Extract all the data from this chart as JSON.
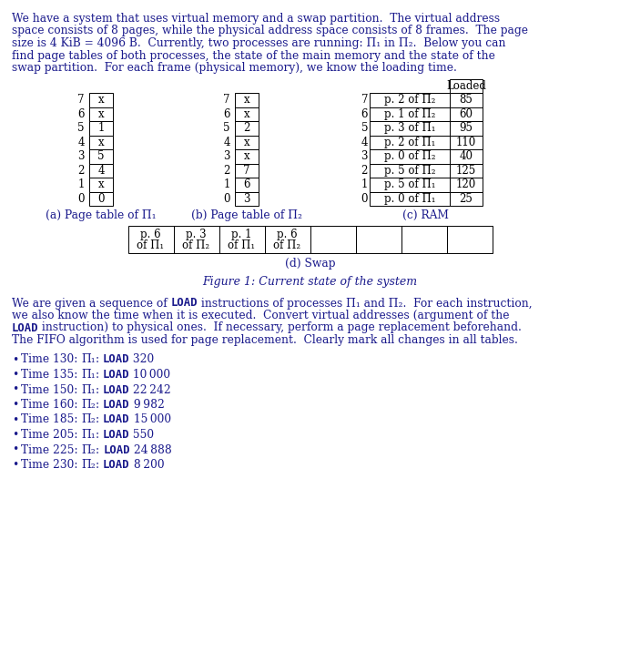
{
  "intro_lines": [
    "We have a system that uses virtual memory and a swap partition.  The virtual address",
    "space consists of 8 pages, while the physical address space consists of 8 frames.  The page",
    "size is 4 KiB = 4096 B.  Currently, two processes are running: Π₁ in Π₂.  Below you can",
    "find page tables of both processes, the state of the main memory and the state of the",
    "swap partition.  For each frame (physical memory), we know the loading time."
  ],
  "page_table_pi1": {
    "rows": [
      [
        7,
        "x"
      ],
      [
        6,
        "x"
      ],
      [
        5,
        "1"
      ],
      [
        4,
        "x"
      ],
      [
        3,
        "5"
      ],
      [
        2,
        "4"
      ],
      [
        1,
        "x"
      ],
      [
        0,
        "0"
      ]
    ],
    "label": "(a) Page table of Π₁"
  },
  "page_table_pi2": {
    "rows": [
      [
        7,
        "x"
      ],
      [
        6,
        "x"
      ],
      [
        5,
        "2"
      ],
      [
        4,
        "x"
      ],
      [
        3,
        "x"
      ],
      [
        2,
        "7"
      ],
      [
        1,
        "6"
      ],
      [
        0,
        "3"
      ]
    ],
    "label": "(b) Page table of Π₂"
  },
  "ram": {
    "rows": [
      [
        7,
        "p. 2 of Π₂",
        85
      ],
      [
        6,
        "p. 1 of Π₂",
        60
      ],
      [
        5,
        "p. 3 of Π₁",
        95
      ],
      [
        4,
        "p. 2 of Π₁",
        110
      ],
      [
        3,
        "p. 0 of Π₂",
        40
      ],
      [
        2,
        "p. 5 of Π₂",
        125
      ],
      [
        1,
        "p. 5 of Π₁",
        120
      ],
      [
        0,
        "p. 0 of Π₁",
        25
      ]
    ],
    "label": "(c) RAM"
  },
  "swap": {
    "slots": [
      [
        "p. 6",
        "of Π₁"
      ],
      [
        "p. 3",
        "of Π₂"
      ],
      [
        "p. 1",
        "of Π₁"
      ],
      [
        "p. 6",
        "of Π₂"
      ],
      [
        "",
        ""
      ],
      [
        "",
        ""
      ],
      [
        "",
        ""
      ],
      [
        "",
        ""
      ]
    ],
    "label": "(d) Swap"
  },
  "figure_caption": "Figure 1: Current state of the system",
  "body_lines": [
    "We are given a sequence of `LOAD` instructions of processes Π₁ and Π₂.  For each instruction,",
    "we also know the time when it is executed.  Convert virtual addresses (argument of the",
    "`LOAD` instruction) to physical ones.  If necessary, perform a page replacement beforehand.",
    "The FIFO algorithm is used for page replacement.  Clearly mark all changes in all tables."
  ],
  "bullets": [
    [
      "Time 130: ",
      "Π₁",
      ": ",
      "LOAD",
      " 320"
    ],
    [
      "Time 135: ",
      "Π₁",
      ": ",
      "LOAD",
      " 10 000"
    ],
    [
      "Time 150: ",
      "Π₁",
      ": ",
      "LOAD",
      " 22 242"
    ],
    [
      "Time 160: ",
      "Π₂",
      ": ",
      "LOAD",
      " 9 982"
    ],
    [
      "Time 185: ",
      "Π₂",
      ": ",
      "LOAD",
      " 15 000"
    ],
    [
      "Time 205: ",
      "Π₁",
      ": ",
      "LOAD",
      " 550"
    ],
    [
      "Time 225: ",
      "Π₂",
      ": ",
      "LOAD",
      " 24 888"
    ],
    [
      "Time 230: ",
      "Π₂",
      ": ",
      "LOAD",
      " 8 200"
    ]
  ],
  "text_color": "#1a1a8c",
  "black": "#000000",
  "bg_color": "#ffffff",
  "figsize": [
    6.81,
    7.38
  ],
  "dpi": 100
}
